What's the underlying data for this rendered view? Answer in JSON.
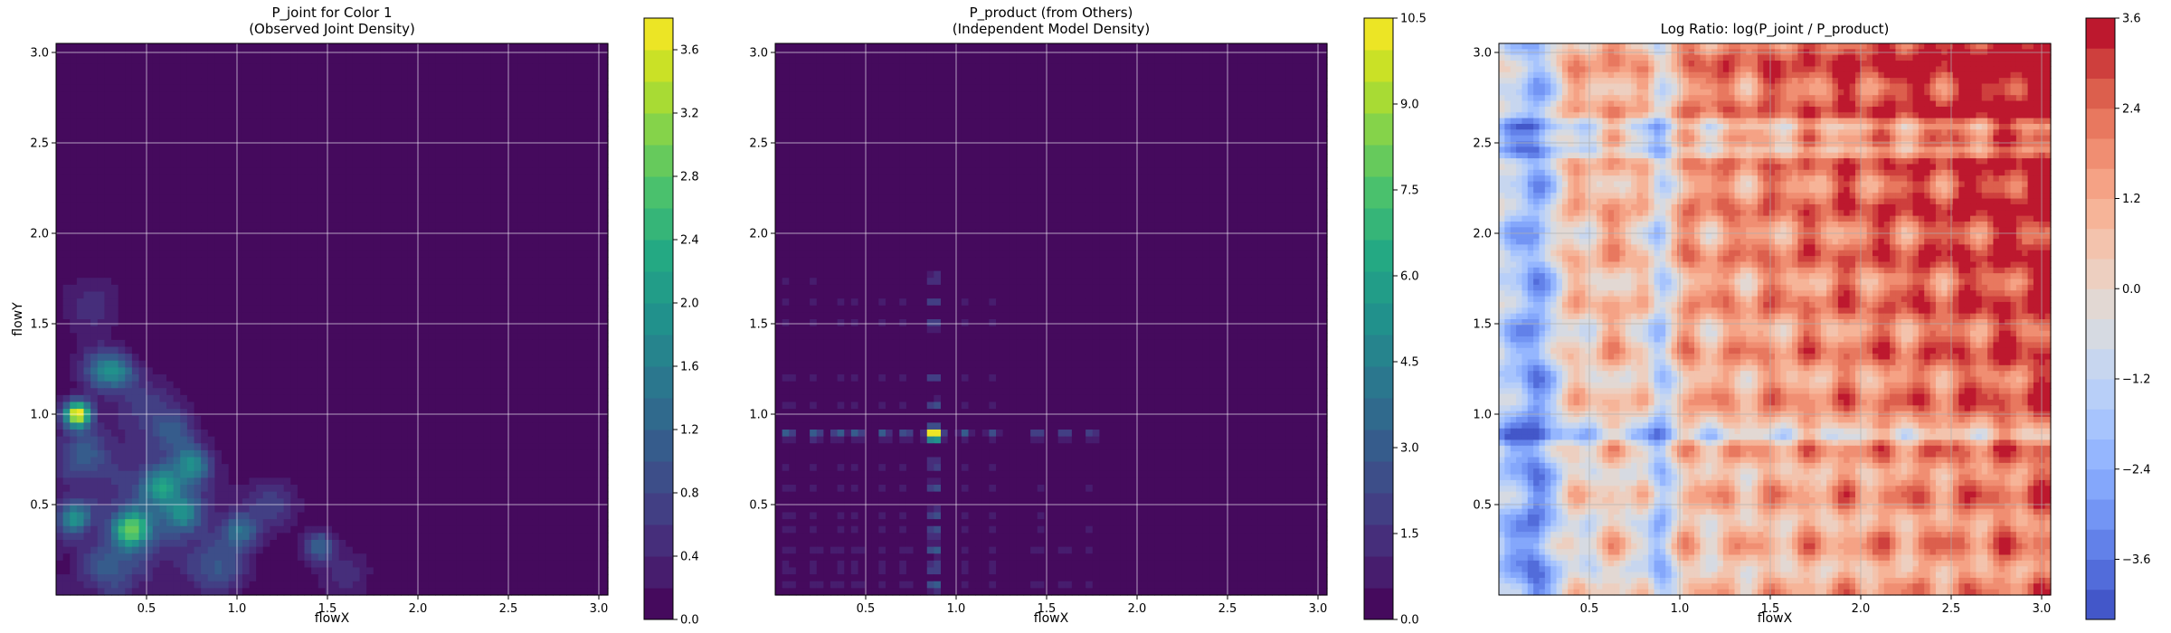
{
  "chart_data": [
    {
      "type": "heatmap",
      "title": "P_joint for Color 1\n(Observed Joint Density)",
      "xlabel": "flowX",
      "ylabel": "flowY",
      "xlim": [
        0.0,
        3.05
      ],
      "ylim": [
        0.0,
        3.05
      ],
      "xticks": [
        "0.5",
        "1.0",
        "1.5",
        "2.0",
        "2.5",
        "3.0"
      ],
      "yticks": [
        "0.5",
        "1.0",
        "1.5",
        "2.0",
        "2.5",
        "3.0"
      ],
      "grid": true,
      "colormap": "viridis",
      "colorbar": {
        "min": 0.0,
        "max": 3.8,
        "ticks": [
          "0.0",
          "0.4",
          "0.8",
          "1.2",
          "1.6",
          "2.0",
          "2.4",
          "2.8",
          "3.2",
          "3.6"
        ]
      },
      "background_value": 0.0,
      "hotspots": [
        {
          "x": 0.12,
          "y": 1.0,
          "value": 3.7,
          "spread": 0.05
        },
        {
          "x": 0.42,
          "y": 0.36,
          "value": 2.4,
          "spread": 0.07
        },
        {
          "x": 0.1,
          "y": 0.43,
          "value": 1.7,
          "spread": 0.06
        },
        {
          "x": 0.58,
          "y": 0.6,
          "value": 1.5,
          "spread": 0.07
        },
        {
          "x": 0.75,
          "y": 0.72,
          "value": 1.5,
          "spread": 0.07
        },
        {
          "x": 0.7,
          "y": 0.45,
          "value": 1.3,
          "spread": 0.07
        },
        {
          "x": 1.02,
          "y": 0.35,
          "value": 1.2,
          "spread": 0.07
        },
        {
          "x": 1.45,
          "y": 0.27,
          "value": 1.2,
          "spread": 0.06
        },
        {
          "x": 0.25,
          "y": 1.25,
          "value": 1.2,
          "spread": 0.08
        },
        {
          "x": 0.35,
          "y": 1.23,
          "value": 1.1,
          "spread": 0.07
        },
        {
          "x": 0.15,
          "y": 0.78,
          "value": 0.9,
          "spread": 0.1
        },
        {
          "x": 0.65,
          "y": 0.9,
          "value": 0.8,
          "spread": 0.08
        },
        {
          "x": 1.2,
          "y": 0.5,
          "value": 0.7,
          "spread": 0.1
        },
        {
          "x": 0.9,
          "y": 0.15,
          "value": 0.9,
          "spread": 0.1
        },
        {
          "x": 0.3,
          "y": 0.15,
          "value": 0.8,
          "spread": 0.1
        },
        {
          "x": 0.5,
          "y": 1.05,
          "value": 0.6,
          "spread": 0.12
        },
        {
          "x": 0.2,
          "y": 1.6,
          "value": 0.5,
          "spread": 0.12
        },
        {
          "x": 1.6,
          "y": 0.12,
          "value": 0.5,
          "spread": 0.1
        },
        {
          "x": 0.55,
          "y": 0.5,
          "value": 0.7,
          "spread": 0.25
        }
      ]
    },
    {
      "type": "heatmap",
      "title": "P_product (from Others)\n(Independent Model Density)",
      "xlabel": "flowX",
      "ylabel": "",
      "xlim": [
        0.0,
        3.05
      ],
      "ylim": [
        0.0,
        3.05
      ],
      "xticks": [
        "0.5",
        "1.0",
        "1.5",
        "2.0",
        "2.5",
        "3.0"
      ],
      "yticks": [
        "0.5",
        "1.0",
        "1.5",
        "2.0",
        "2.5",
        "3.0"
      ],
      "grid": true,
      "colormap": "viridis",
      "colorbar": {
        "min": 0.0,
        "max": 10.5,
        "ticks": [
          "0.0",
          "1.5",
          "3.0",
          "4.5",
          "6.0",
          "7.5",
          "9.0",
          "10.5"
        ]
      },
      "background_value": 0.0,
      "hotspots": [
        {
          "x": 0.88,
          "y": 0.89,
          "value": 10.0,
          "spread": 0.03
        }
      ],
      "marginal_peaks_x": [
        0.07,
        0.22,
        0.35,
        0.45,
        0.6,
        0.72,
        0.88,
        1.05,
        1.2,
        1.45,
        1.6,
        1.75
      ],
      "marginal_peaks_y": [
        0.05,
        0.15,
        0.25,
        0.35,
        0.45,
        0.6,
        0.72,
        0.89,
        1.05,
        1.2,
        1.5,
        1.62,
        1.75
      ]
    },
    {
      "type": "heatmap",
      "title": "Log Ratio: log(P_joint / P_product)",
      "xlabel": "flowX",
      "ylabel": "",
      "xlim": [
        0.0,
        3.05
      ],
      "ylim": [
        0.0,
        3.05
      ],
      "xticks": [
        "0.5",
        "1.0",
        "1.5",
        "2.0",
        "2.5",
        "3.0"
      ],
      "yticks": [
        "0.5",
        "1.0",
        "1.5",
        "2.0",
        "2.5",
        "3.0"
      ],
      "grid": true,
      "colormap": "coolwarm",
      "colorbar": {
        "min": -4.4,
        "max": 3.6,
        "ticks": [
          "3.6",
          "2.4",
          "1.2",
          "0.0",
          "−1.2",
          "−2.4",
          "−3.6"
        ]
      },
      "trend": "values increase toward upper-right (up to ~3.6), negative bands near flowX 0.9 and flowY 0.9",
      "cold_bands_x": [
        0.88,
        0.2
      ],
      "cold_bands_y": [
        0.88,
        2.45,
        2.6
      ]
    }
  ]
}
